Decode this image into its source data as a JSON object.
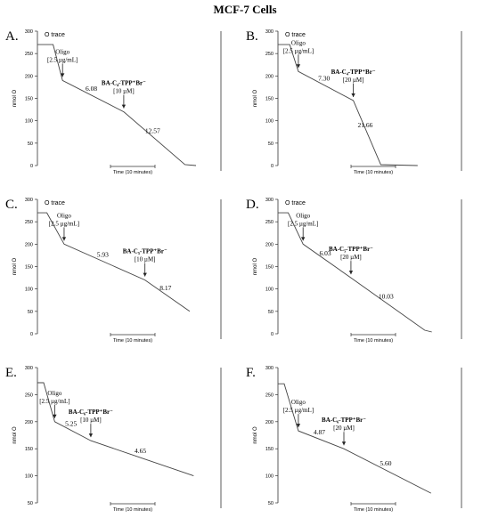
{
  "figure_title": "MCF-7 Cells",
  "chart_data": [
    {
      "type": "line",
      "panel_label": "A.",
      "trace_label": "O trace",
      "ylabel": "nmol O",
      "xlabel": "Time (10 minutes)",
      "yticks": [
        0,
        50,
        100,
        150,
        200,
        250,
        300
      ],
      "ylim": [
        0,
        300
      ],
      "x": [
        0,
        2.0,
        3.2,
        11.0,
        18.8,
        20.2
      ],
      "y": [
        270,
        270,
        190,
        120,
        2,
        0
      ],
      "annotations": [
        {
          "kind": "injection",
          "lines": [
            "Oligo",
            "[2.5 µg/mL]"
          ],
          "at_index": 2
        },
        {
          "kind": "injection",
          "lines": [
            "BA-C₄-TPP⁺Br⁻",
            "[10 µM]"
          ],
          "at_index": 3
        },
        {
          "kind": "rate",
          "text": "6.08",
          "segment": 2
        },
        {
          "kind": "rate",
          "text": "12.57",
          "segment": 3
        }
      ]
    },
    {
      "type": "line",
      "panel_label": "B.",
      "trace_label": "O trace",
      "ylabel": "nmol O",
      "xlabel": "Time (10 minutes)",
      "yticks": [
        0,
        50,
        100,
        150,
        200,
        250,
        300
      ],
      "ylim": [
        0,
        300
      ],
      "x": [
        0,
        1.5,
        2.6,
        9.6,
        13.1,
        17.8
      ],
      "y": [
        270,
        270,
        210,
        145,
        2,
        0
      ],
      "annotations": [
        {
          "kind": "injection",
          "lines": [
            "Oligo",
            "[2.5 µg/mL]"
          ],
          "at_index": 2
        },
        {
          "kind": "injection",
          "lines": [
            "BA-C₄-TPP⁺Br⁻",
            "[20 µM]"
          ],
          "at_index": 3
        },
        {
          "kind": "rate",
          "text": "7.30",
          "segment": 2
        },
        {
          "kind": "rate",
          "text": "21.66",
          "segment": 3
        }
      ]
    },
    {
      "type": "line",
      "panel_label": "C.",
      "trace_label": "O trace",
      "ylabel": "nmol O",
      "xlabel": "Time (10 minutes)",
      "yticks": [
        0,
        50,
        100,
        150,
        200,
        250,
        300
      ],
      "ylim": [
        0,
        300
      ],
      "x": [
        0,
        1.2,
        3.4,
        13.7,
        19.4
      ],
      "y": [
        270,
        270,
        200,
        120,
        50
      ],
      "annotations": [
        {
          "kind": "injection",
          "lines": [
            "Oligo",
            "[2.5 µg/mL]"
          ],
          "at_index": 2
        },
        {
          "kind": "injection",
          "lines": [
            "BA-C₅-TPP⁺Br⁻",
            "[10 µM]"
          ],
          "at_index": 3
        },
        {
          "kind": "rate",
          "text": "5.93",
          "segment": 2
        },
        {
          "kind": "rate",
          "text": "8.17",
          "segment": 3
        }
      ]
    },
    {
      "type": "line",
      "panel_label": "D.",
      "trace_label": "O trace",
      "ylabel": "nmol O",
      "xlabel": "Time (10 minutes)",
      "yticks": [
        0,
        50,
        100,
        150,
        200,
        250,
        300
      ],
      "ylim": [
        0,
        300
      ],
      "x": [
        0,
        1.3,
        3.2,
        9.3,
        18.7,
        19.6
      ],
      "y": [
        270,
        270,
        200,
        125,
        8,
        4
      ],
      "annotations": [
        {
          "kind": "injection",
          "lines": [
            "Oligo",
            "[2.5 µg/mL]"
          ],
          "at_index": 2
        },
        {
          "kind": "injection",
          "lines": [
            "BA-C₅-TPP⁺Br⁻",
            "[20 µM]"
          ],
          "at_index": 3
        },
        {
          "kind": "rate",
          "text": "6.03",
          "segment": 2
        },
        {
          "kind": "rate",
          "text": "10.03",
          "segment": 3
        }
      ]
    },
    {
      "type": "line",
      "panel_label": "E.",
      "ylabel": "nmol O",
      "xlabel": "Time (10 minutes)",
      "yticks": [
        50,
        100,
        150,
        200,
        250,
        300
      ],
      "ylim": [
        50,
        300
      ],
      "x": [
        0,
        0.8,
        2.2,
        6.8,
        19.9
      ],
      "y": [
        272,
        272,
        200,
        165,
        100
      ],
      "annotations": [
        {
          "kind": "injection",
          "lines": [
            "Oligo",
            "[2.5 µg/mL]"
          ],
          "at_index": 2
        },
        {
          "kind": "injection",
          "lines": [
            "BA-C₆-TPP⁺Br⁻",
            "[10 µM]"
          ],
          "at_index": 3
        },
        {
          "kind": "rate",
          "text": "5.25",
          "segment": 2
        },
        {
          "kind": "rate",
          "text": "4.65",
          "segment": 3
        }
      ]
    },
    {
      "type": "line",
      "panel_label": "F.",
      "ylabel": "nmol O",
      "xlabel": "Time (10 minutes)",
      "yticks": [
        50,
        100,
        150,
        200,
        250,
        300
      ],
      "ylim": [
        50,
        300
      ],
      "x": [
        0,
        0.8,
        2.6,
        8.4,
        19.5
      ],
      "y": [
        270,
        270,
        183,
        150,
        68
      ],
      "annotations": [
        {
          "kind": "injection",
          "lines": [
            "Oligo",
            "[2.5 µg/mL]"
          ],
          "at_index": 2
        },
        {
          "kind": "injection",
          "lines": [
            "BA-C₆-TPP⁺Br⁻",
            "[20 µM]"
          ],
          "at_index": 3
        },
        {
          "kind": "rate",
          "text": "4.87",
          "segment": 2
        },
        {
          "kind": "rate",
          "text": "5.60",
          "segment": 3
        }
      ]
    }
  ]
}
